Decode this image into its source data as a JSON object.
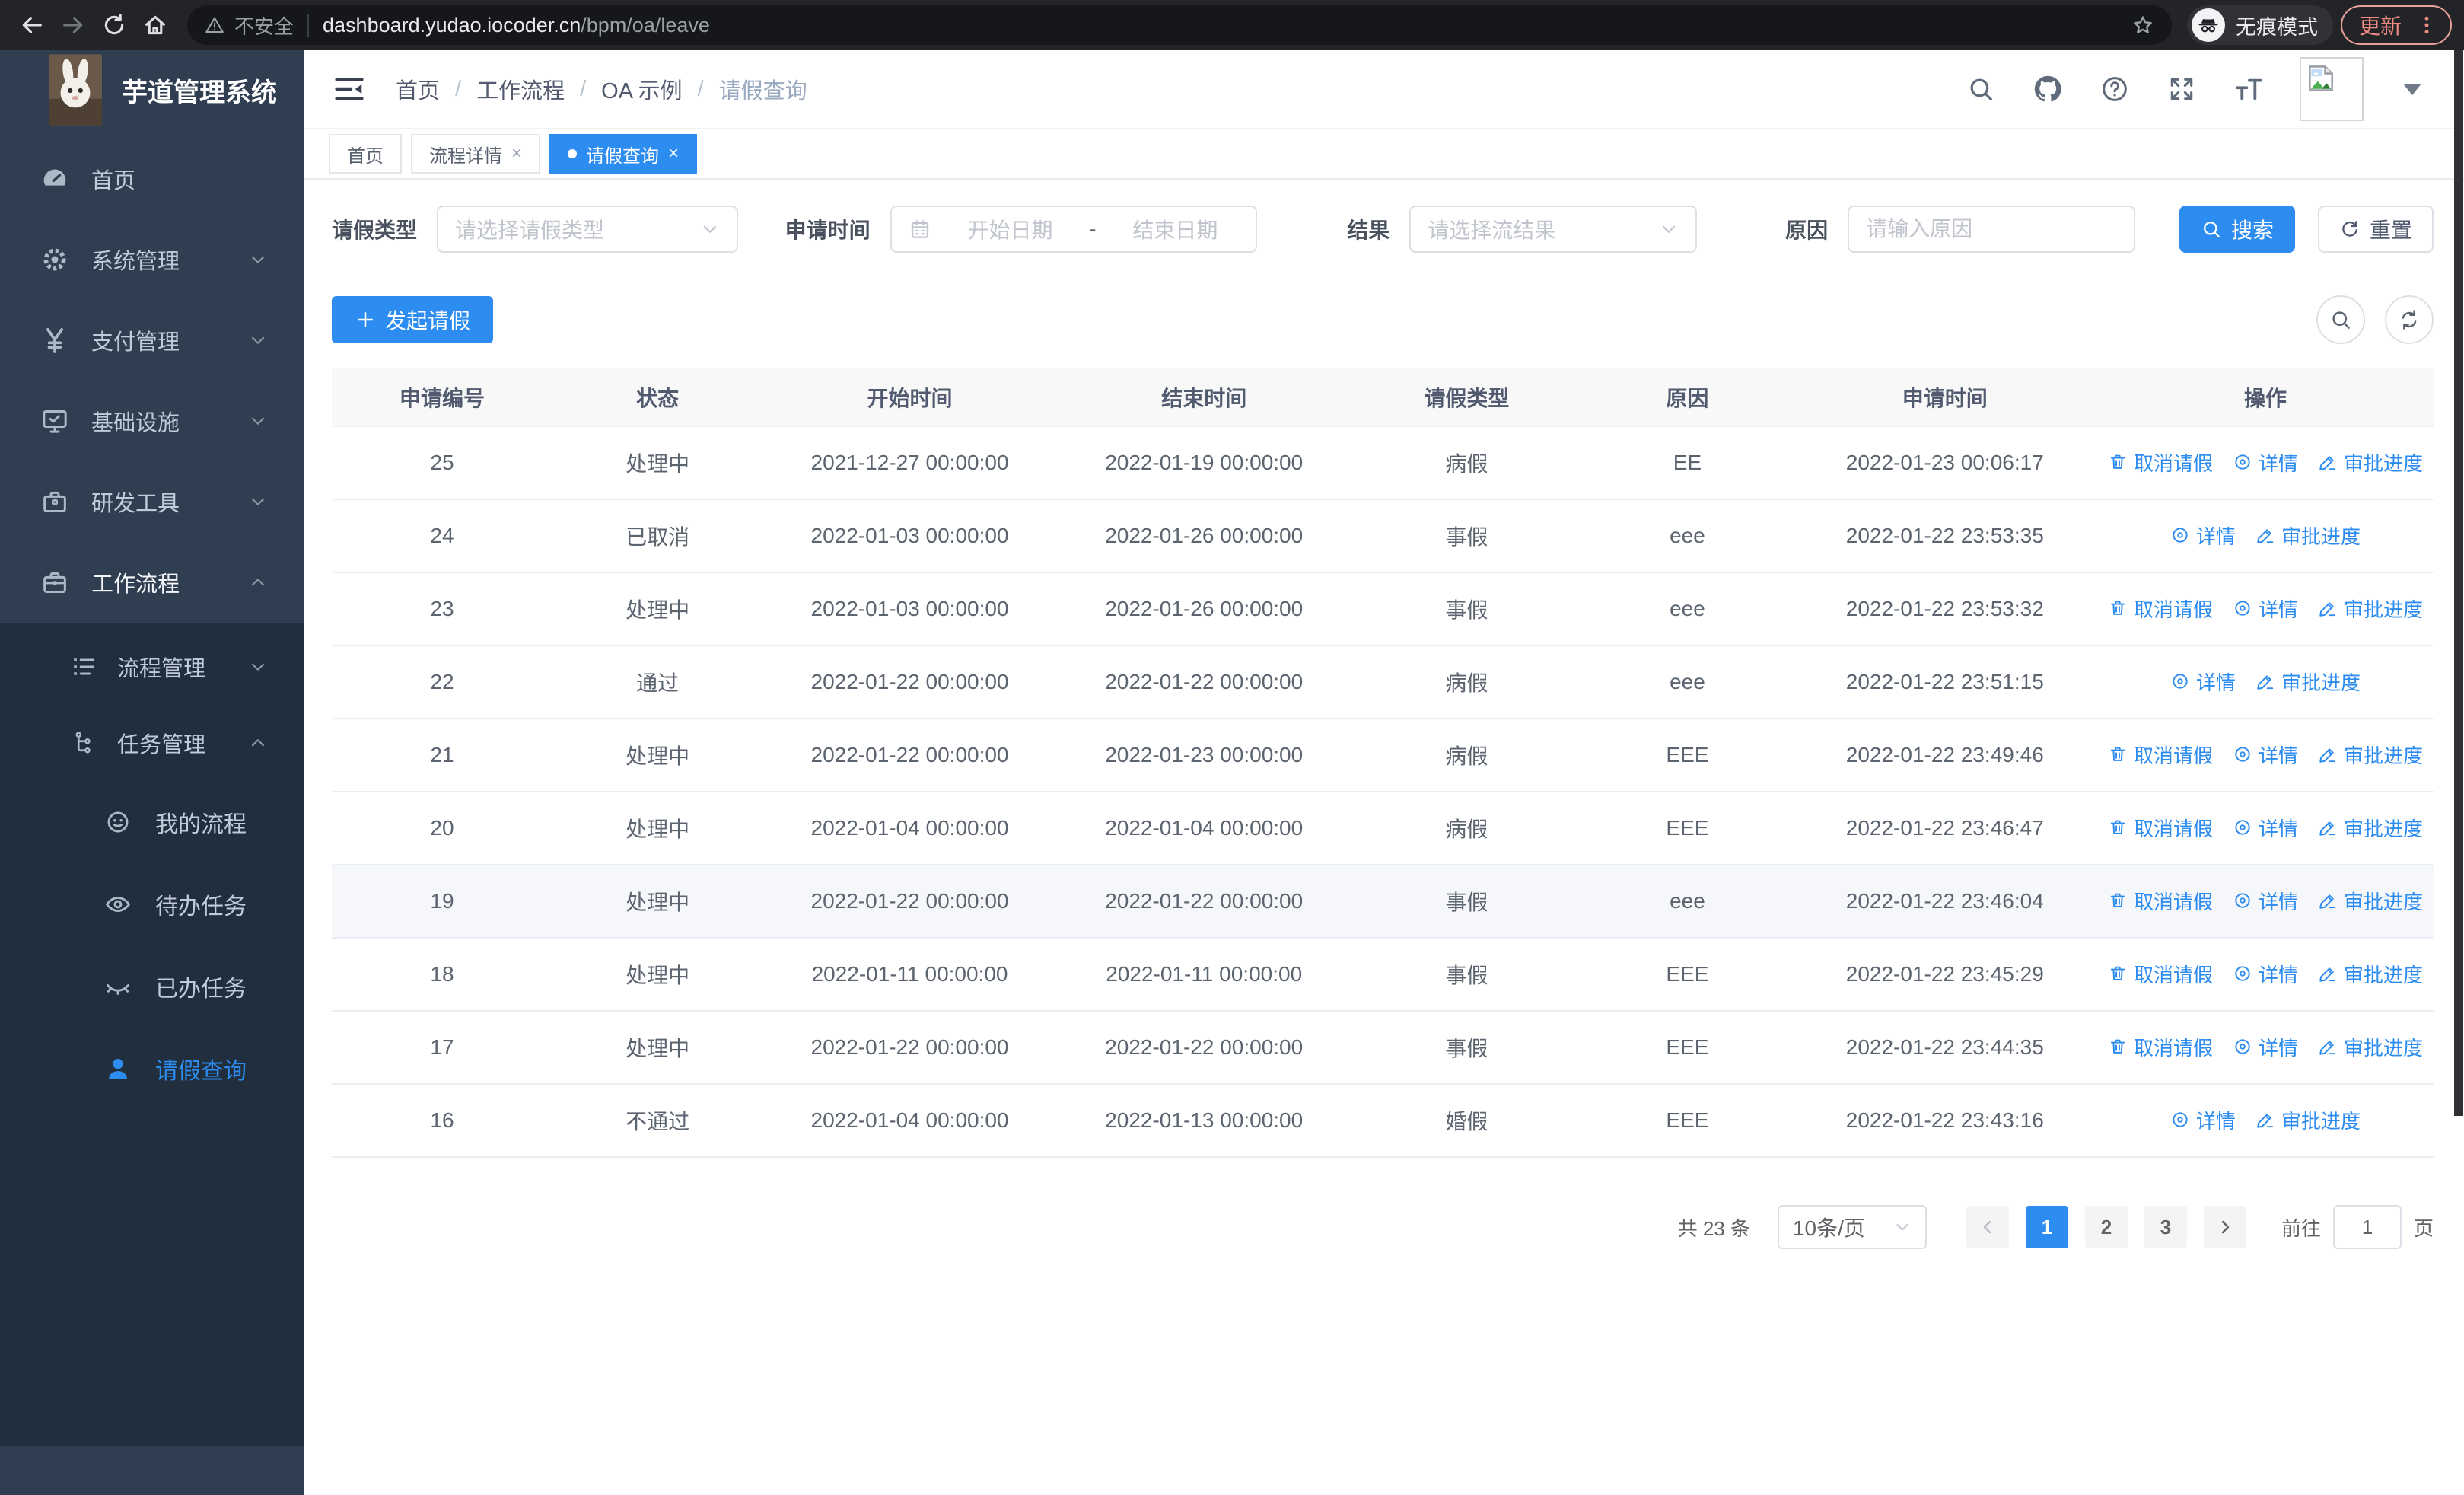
{
  "browser": {
    "security_label": "不安全",
    "url_host": "dashboard.yudao.iocoder.cn",
    "url_path": "/bpm/oa/leave",
    "incognito_label": "无痕模式",
    "update_label": "更新"
  },
  "sidebar": {
    "title": "芋道管理系统",
    "items": [
      {
        "label": "首页",
        "icon": "dashboard-icon",
        "chevron": ""
      },
      {
        "label": "系统管理",
        "icon": "gear-icon",
        "chevron": "down"
      },
      {
        "label": "支付管理",
        "icon": "yen-icon",
        "chevron": "down"
      },
      {
        "label": "基础设施",
        "icon": "monitor-icon",
        "chevron": "down"
      },
      {
        "label": "研发工具",
        "icon": "toolbox-icon",
        "chevron": "down"
      },
      {
        "label": "工作流程",
        "icon": "briefcase-icon",
        "chevron": "up",
        "active": true
      }
    ],
    "workflow_children": [
      {
        "label": "流程管理",
        "icon": "flow-list-icon",
        "chevron": "down"
      },
      {
        "label": "任务管理",
        "icon": "task-tree-icon",
        "chevron": "up"
      }
    ],
    "task_children": [
      {
        "label": "我的流程",
        "icon": "face-icon"
      },
      {
        "label": "待办任务",
        "icon": "eye-open-icon"
      },
      {
        "label": "已办任务",
        "icon": "eye-closed-icon"
      },
      {
        "label": "请假查询",
        "icon": "user-icon",
        "active": true
      }
    ]
  },
  "breadcrumb": [
    "首页",
    "工作流程",
    "OA 示例",
    "请假查询"
  ],
  "tabs": [
    {
      "label": "首页",
      "closable": false,
      "active": false
    },
    {
      "label": "流程详情",
      "closable": true,
      "active": false
    },
    {
      "label": "请假查询",
      "closable": true,
      "active": true
    }
  ],
  "filters": {
    "type_label": "请假类型",
    "type_placeholder": "请选择请假类型",
    "time_label": "申请时间",
    "start_placeholder": "开始日期",
    "range_separator": "-",
    "end_placeholder": "结束日期",
    "result_label": "结果",
    "result_placeholder": "请选择流结果",
    "reason_label": "原因",
    "reason_placeholder": "请输入原因",
    "search_label": "搜索",
    "reset_label": "重置"
  },
  "toolbar": {
    "create_label": "发起请假"
  },
  "table": {
    "headers": [
      "申请编号",
      "状态",
      "开始时间",
      "结束时间",
      "请假类型",
      "原因",
      "申请时间",
      "操作"
    ],
    "action_labels": {
      "cancel": "取消请假",
      "detail": "详情",
      "progress": "审批进度"
    },
    "rows": [
      {
        "id": "25",
        "status": "处理中",
        "start": "2021-12-27 00:00:00",
        "end": "2022-01-19 00:00:00",
        "type": "病假",
        "reason": "EE",
        "applied": "2022-01-23 00:06:17",
        "actions": [
          "cancel",
          "detail",
          "progress"
        ],
        "highlight": false
      },
      {
        "id": "24",
        "status": "已取消",
        "start": "2022-01-03 00:00:00",
        "end": "2022-01-26 00:00:00",
        "type": "事假",
        "reason": "eee",
        "applied": "2022-01-22 23:53:35",
        "actions": [
          "detail",
          "progress"
        ],
        "highlight": false
      },
      {
        "id": "23",
        "status": "处理中",
        "start": "2022-01-03 00:00:00",
        "end": "2022-01-26 00:00:00",
        "type": "事假",
        "reason": "eee",
        "applied": "2022-01-22 23:53:32",
        "actions": [
          "cancel",
          "detail",
          "progress"
        ],
        "highlight": false
      },
      {
        "id": "22",
        "status": "通过",
        "start": "2022-01-22 00:00:00",
        "end": "2022-01-22 00:00:00",
        "type": "病假",
        "reason": "eee",
        "applied": "2022-01-22 23:51:15",
        "actions": [
          "detail",
          "progress"
        ],
        "highlight": false
      },
      {
        "id": "21",
        "status": "处理中",
        "start": "2022-01-22 00:00:00",
        "end": "2022-01-23 00:00:00",
        "type": "病假",
        "reason": "EEE",
        "applied": "2022-01-22 23:49:46",
        "actions": [
          "cancel",
          "detail",
          "progress"
        ],
        "highlight": false
      },
      {
        "id": "20",
        "status": "处理中",
        "start": "2022-01-04 00:00:00",
        "end": "2022-01-04 00:00:00",
        "type": "病假",
        "reason": "EEE",
        "applied": "2022-01-22 23:46:47",
        "actions": [
          "cancel",
          "detail",
          "progress"
        ],
        "highlight": false
      },
      {
        "id": "19",
        "status": "处理中",
        "start": "2022-01-22 00:00:00",
        "end": "2022-01-22 00:00:00",
        "type": "事假",
        "reason": "eee",
        "applied": "2022-01-22 23:46:04",
        "actions": [
          "cancel",
          "detail",
          "progress"
        ],
        "highlight": true
      },
      {
        "id": "18",
        "status": "处理中",
        "start": "2022-01-11 00:00:00",
        "end": "2022-01-11 00:00:00",
        "type": "事假",
        "reason": "EEE",
        "applied": "2022-01-22 23:45:29",
        "actions": [
          "cancel",
          "detail",
          "progress"
        ],
        "highlight": false
      },
      {
        "id": "17",
        "status": "处理中",
        "start": "2022-01-22 00:00:00",
        "end": "2022-01-22 00:00:00",
        "type": "事假",
        "reason": "EEE",
        "applied": "2022-01-22 23:44:35",
        "actions": [
          "cancel",
          "detail",
          "progress"
        ],
        "highlight": false
      },
      {
        "id": "16",
        "status": "不通过",
        "start": "2022-01-04 00:00:00",
        "end": "2022-01-13 00:00:00",
        "type": "婚假",
        "reason": "EEE",
        "applied": "2022-01-22 23:43:16",
        "actions": [
          "detail",
          "progress"
        ],
        "highlight": false
      }
    ]
  },
  "pagination": {
    "total": "共 23 条",
    "page_size": "10条/页",
    "pages": [
      "1",
      "2",
      "3"
    ],
    "active_page": "1",
    "goto_label": "前往",
    "goto_value": "1",
    "unit_label": "页"
  },
  "colors": {
    "accent": "#2d8cf0",
    "sidebar": "#2f3e50",
    "sidebar_dark": "#202e3e",
    "table_header_bg": "#f8f8f9"
  }
}
